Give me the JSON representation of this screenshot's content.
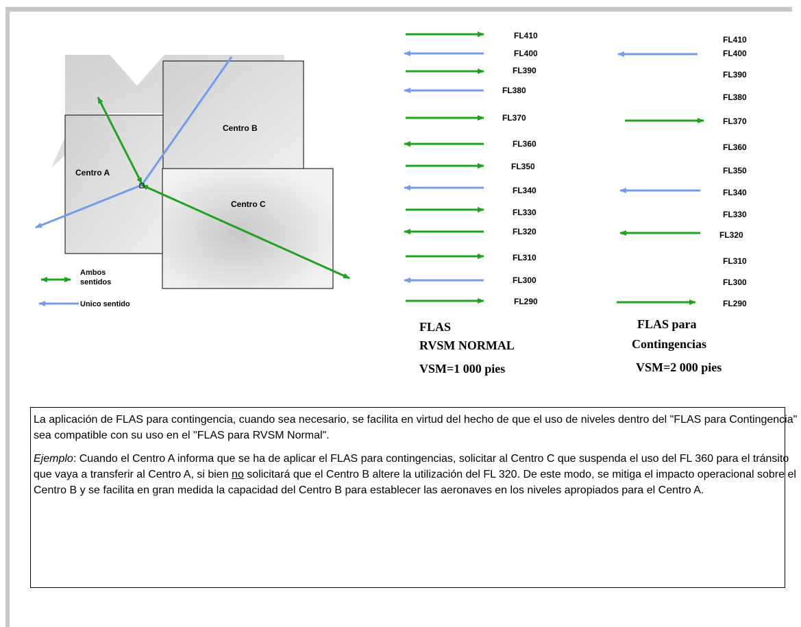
{
  "diagram": {
    "centers": [
      "Centro A",
      "Centro B",
      "Centro C"
    ],
    "legend": {
      "both": [
        "Ambos",
        "sentidos"
      ],
      "single": "Unico sentido"
    }
  },
  "normal": {
    "levels": [
      "FL410",
      "FL400",
      "FL390",
      "FL380",
      "FL370",
      "FL360",
      "FL350",
      "FL340",
      "FL330",
      "FL320",
      "FL310",
      "FL300",
      "FL290"
    ],
    "caption": [
      "FLAS",
      "RVSM NORMAL",
      "VSM=1 000 pies"
    ]
  },
  "contingency": {
    "levels": [
      "FL410",
      "FL400",
      "FL390",
      "FL380",
      "FL370",
      "FL360",
      "FL350",
      "FL340",
      "FL330",
      "FL320",
      "FL310",
      "FL300",
      "FL290"
    ],
    "caption": [
      "FLAS para",
      "Contingencias",
      "VSM=2 000 pies"
    ]
  },
  "text": {
    "paragraph1": "La aplicación de FLAS para contingencia, cuando sea necesario, se facilita en virtud del hecho de que el uso de niveles dentro del \"FLAS para Contingencia\" sea compatible con su uso en el \"FLAS para RVSM Normal\".",
    "example_label": "Ejemplo",
    "example_a": ":  Cuando el Centro A informa que se ha de aplicar el FLAS para contingencias, solicitar al Centro C que suspenda el uso del FL 360 para el tránsito que vaya a transferir al Centro A, si bien ",
    "example_no": "no",
    "example_b": " solicitará que el Centro B altere la utilización del FL 320. De este modo, se mitiga el impacto operacional sobre el Centro B y se facilita en gran medida la capacidad del Centro B para establecer las aeronaves en los niveles apropiados para el Centro A."
  }
}
